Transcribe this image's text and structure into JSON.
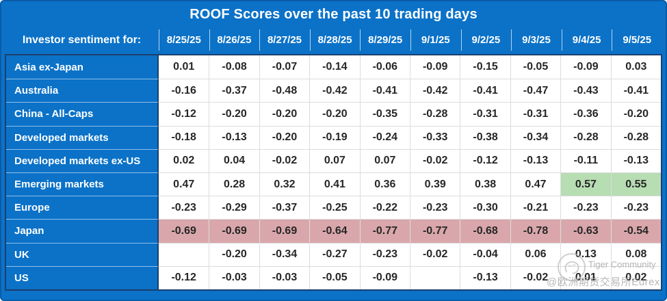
{
  "title": "ROOF Scores over the past 10 trading days",
  "colors": {
    "frame_blue": "#0b72c8",
    "frame_edge": "#0a5ca8",
    "dark_border": "#1c3f6e",
    "grid_line": "#dcdcdc",
    "cell_text": "#262626",
    "green_highlight": "#b7ddb2",
    "red_highlight": "#d9a7ab"
  },
  "chart_data": {
    "type": "table",
    "title": "ROOF Scores over the past 10 trading days",
    "row_header_label": "Investor sentiment for:",
    "columns": [
      "8/25/25",
      "8/26/25",
      "8/27/25",
      "8/28/25",
      "8/29/25",
      "9/1/25",
      "9/2/25",
      "9/3/25",
      "9/4/25",
      "9/5/25"
    ],
    "rows": [
      {
        "label": "Asia ex-Japan",
        "values": [
          "0.01",
          "-0.08",
          "-0.07",
          "-0.14",
          "-0.06",
          "-0.09",
          "-0.15",
          "-0.05",
          "-0.09",
          "0.03"
        ]
      },
      {
        "label": "Australia",
        "values": [
          "-0.16",
          "-0.37",
          "-0.48",
          "-0.42",
          "-0.41",
          "-0.42",
          "-0.41",
          "-0.47",
          "-0.43",
          "-0.41"
        ]
      },
      {
        "label": "China - All-Caps",
        "values": [
          "-0.12",
          "-0.20",
          "-0.20",
          "-0.20",
          "-0.35",
          "-0.28",
          "-0.31",
          "-0.31",
          "-0.36",
          "-0.20"
        ]
      },
      {
        "label": "Developed markets",
        "values": [
          "-0.18",
          "-0.13",
          "-0.20",
          "-0.19",
          "-0.24",
          "-0.33",
          "-0.38",
          "-0.34",
          "-0.28",
          "-0.28"
        ]
      },
      {
        "label": "Developed markets ex-US",
        "values": [
          "0.02",
          "0.04",
          "-0.02",
          "0.07",
          "0.07",
          "-0.02",
          "-0.12",
          "-0.13",
          "-0.11",
          "-0.13"
        ]
      },
      {
        "label": "Emerging markets",
        "values": [
          "0.47",
          "0.28",
          "0.32",
          "0.41",
          "0.36",
          "0.39",
          "0.38",
          "0.47",
          "0.57",
          "0.55"
        ],
        "green_cells": [
          8,
          9
        ]
      },
      {
        "label": "Europe",
        "values": [
          "-0.23",
          "-0.29",
          "-0.37",
          "-0.25",
          "-0.22",
          "-0.23",
          "-0.30",
          "-0.21",
          "-0.23",
          "-0.23"
        ]
      },
      {
        "label": "Japan",
        "values": [
          "-0.69",
          "-0.69",
          "-0.69",
          "-0.64",
          "-0.77",
          "-0.77",
          "-0.68",
          "-0.78",
          "-0.63",
          "-0.54"
        ],
        "row_highlight": "red"
      },
      {
        "label": "UK",
        "values": [
          "",
          "-0.20",
          "-0.34",
          "-0.27",
          "-0.23",
          "-0.02",
          "-0.04",
          "0.06",
          "0.13",
          "0.08"
        ]
      },
      {
        "label": "US",
        "values": [
          "-0.12",
          "-0.03",
          "-0.03",
          "-0.05",
          "-0.09",
          "",
          "-0.13",
          "-0.02",
          "0.01",
          "0.02"
        ]
      }
    ],
    "legend_hint": "green = strongest positive sentiment, red = strongly negative row",
    "grid": true
  },
  "watermark": {
    "community": "Tiger Community",
    "handle": "@欧洲期货交易所Eurex"
  }
}
